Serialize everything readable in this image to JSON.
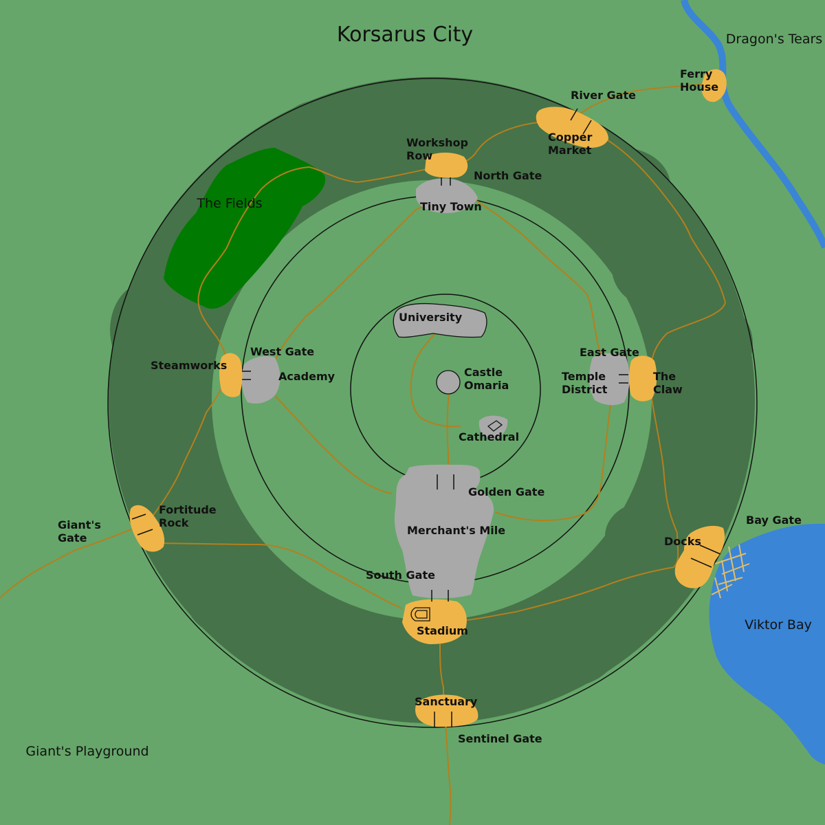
{
  "title": "Korsarus City",
  "regions": {
    "dragons_tears": "Dragon's Tears",
    "the_fields": "The Fields",
    "viktor_bay": "Viktor Bay",
    "giants_playground": "Giant's Playground"
  },
  "places": {
    "ferry_house": [
      "Ferry",
      "House"
    ],
    "river_gate": "River Gate",
    "copper_market": [
      "Copper",
      "Market"
    ],
    "workshop_row": [
      "Workshop",
      "Row"
    ],
    "north_gate": "North Gate",
    "tiny_town": "Tiny Town",
    "university": "University",
    "castle_omaria": [
      "Castle",
      "Omaria"
    ],
    "cathedral": "Cathedral",
    "west_gate": "West Gate",
    "academy": "Academy",
    "steamworks": "Steamworks",
    "east_gate": "East Gate",
    "temple_district": [
      "Temple",
      "District"
    ],
    "the_claw": [
      "The",
      "Claw"
    ],
    "golden_gate": "Golden Gate",
    "merchants_mile": "Merchant's Mile",
    "south_gate": "South Gate",
    "stadium": "Stadium",
    "fortitude_rock": [
      "Fortitude",
      "Rock"
    ],
    "giants_gate": [
      "Giant's",
      "Gate"
    ],
    "bay_gate": "Bay Gate",
    "docks": "Docks",
    "sanctuary": "Sanctuary",
    "sentinel_gate": "Sentinel Gate"
  },
  "colors": {
    "grass": "#66a66a",
    "forest": "#467349",
    "fields": "#007a00",
    "water": "#3a85d6",
    "settlement": "#f0b548",
    "stone_district": "#a9a9a9",
    "road": "#b57f1e",
    "wall": "#111111"
  }
}
